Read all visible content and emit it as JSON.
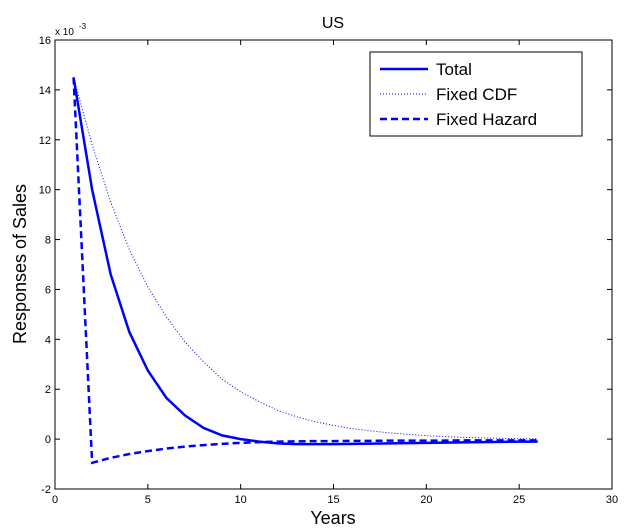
{
  "chart_data": {
    "type": "line",
    "title": "US",
    "xlabel": "Years",
    "ylabel": "Responses of Sales",
    "y_multiplier": "x 10",
    "y_multiplier_exponent": "-3",
    "x": [
      1,
      2,
      3,
      4,
      5,
      6,
      7,
      8,
      9,
      10,
      11,
      12,
      13,
      14,
      15,
      16,
      17,
      18,
      19,
      20,
      21,
      22,
      23,
      24,
      25,
      26
    ],
    "series": [
      {
        "name": "Total",
        "color": "#0000ff",
        "style": "solid",
        "values": [
          14.5,
          10.0,
          6.6,
          4.3,
          2.75,
          1.65,
          0.95,
          0.45,
          0.15,
          0,
          -0.1,
          -0.17,
          -0.2,
          -0.2,
          -0.2,
          -0.19,
          -0.18,
          -0.17,
          -0.16,
          -0.15,
          -0.14,
          -0.13,
          -0.12,
          -0.11,
          -0.1,
          -0.1
        ]
      },
      {
        "name": "Fixed CDF",
        "color": "#0000ff",
        "style": "dotted",
        "values": [
          14.5,
          11.8,
          9.5,
          7.6,
          6.1,
          4.9,
          3.9,
          3.1,
          2.4,
          1.9,
          1.5,
          1.15,
          0.9,
          0.7,
          0.55,
          0.42,
          0.33,
          0.25,
          0.19,
          0.14,
          0.1,
          0.07,
          0.05,
          0.03,
          0.02,
          0.01
        ]
      },
      {
        "name": "Fixed Hazard",
        "color": "#0000ff",
        "style": "dashed",
        "values": [
          14.5,
          -0.95,
          -0.75,
          -0.6,
          -0.48,
          -0.38,
          -0.3,
          -0.24,
          -0.19,
          -0.15,
          -0.12,
          -0.1,
          -0.09,
          -0.08,
          -0.08,
          -0.07,
          -0.07,
          -0.06,
          -0.06,
          -0.06,
          -0.06,
          -0.05,
          -0.05,
          -0.05,
          -0.05,
          -0.05
        ]
      }
    ],
    "xlim": [
      0,
      30
    ],
    "xticks": [
      0,
      5,
      10,
      15,
      20,
      25,
      30
    ],
    "ylim": [
      -2,
      16
    ],
    "yticks": [
      -2,
      0,
      2,
      4,
      6,
      8,
      10,
      12,
      14,
      16
    ],
    "legend": "upper right",
    "grid": false
  }
}
